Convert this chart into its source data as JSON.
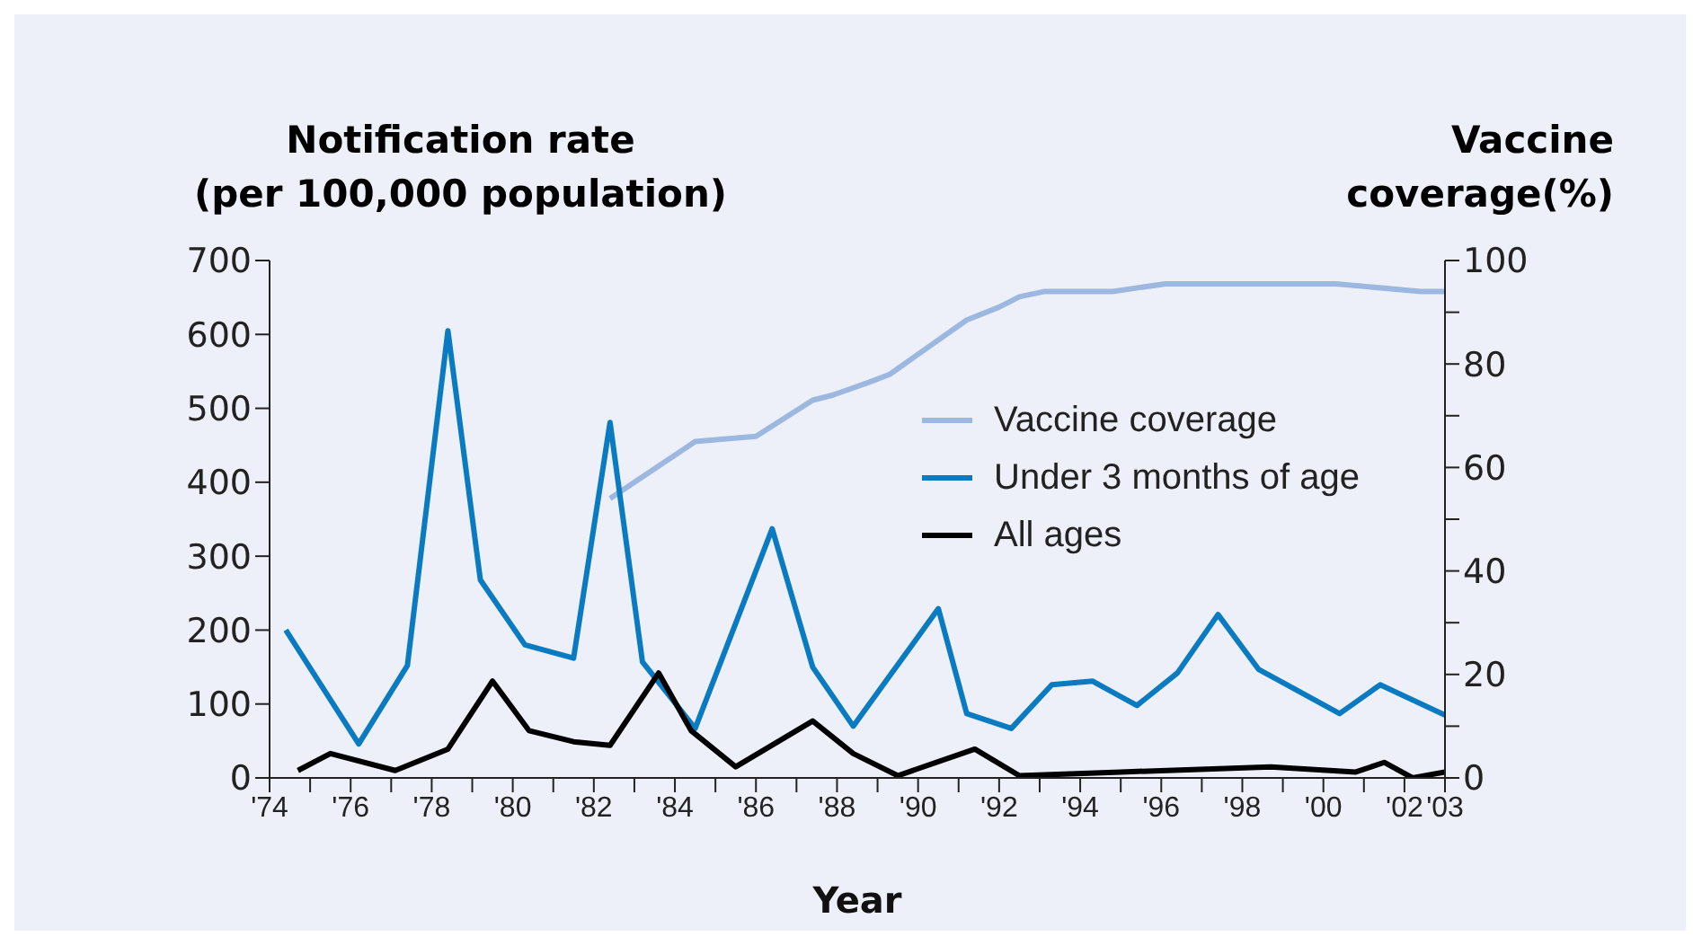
{
  "chart_data": {
    "type": "line",
    "xlabel": "Year",
    "ylabel": "Notification rate\n(per 100,000 population)",
    "y2label": "Vaccine\ncoverage(%)",
    "xlim": [
      1974,
      2003
    ],
    "xticks": [
      {
        "value": 1974,
        "label": "'74"
      },
      {
        "value": 1975,
        "label": null
      },
      {
        "value": 1976,
        "label": "'76"
      },
      {
        "value": 1977,
        "label": null
      },
      {
        "value": 1978,
        "label": "'78"
      },
      {
        "value": 1979,
        "label": null
      },
      {
        "value": 1980,
        "label": "'80"
      },
      {
        "value": 1981,
        "label": null
      },
      {
        "value": 1982,
        "label": "'82"
      },
      {
        "value": 1983,
        "label": null
      },
      {
        "value": 1984,
        "label": "'84"
      },
      {
        "value": 1985,
        "label": null
      },
      {
        "value": 1986,
        "label": "'86"
      },
      {
        "value": 1987,
        "label": null
      },
      {
        "value": 1988,
        "label": "'88"
      },
      {
        "value": 1989,
        "label": null
      },
      {
        "value": 1990,
        "label": "'90"
      },
      {
        "value": 1991,
        "label": null
      },
      {
        "value": 1992,
        "label": "'92"
      },
      {
        "value": 1993,
        "label": null
      },
      {
        "value": 1994,
        "label": "'94"
      },
      {
        "value": 1995,
        "label": null
      },
      {
        "value": 1996,
        "label": "'96"
      },
      {
        "value": 1997,
        "label": null
      },
      {
        "value": 1998,
        "label": "'98"
      },
      {
        "value": 1999,
        "label": null
      },
      {
        "value": 2000,
        "label": "'00"
      },
      {
        "value": 2001,
        "label": null
      },
      {
        "value": 2002,
        "label": "'02"
      },
      {
        "value": 2003,
        "label": "'03"
      }
    ],
    "ylim": [
      0,
      700
    ],
    "yticks": [
      0,
      100,
      200,
      300,
      400,
      500,
      600,
      700
    ],
    "y2lim": [
      0,
      100
    ],
    "y2ticks": [
      0,
      {
        "value": 10,
        "label": null
      },
      20,
      {
        "value": 30,
        "label": null
      },
      40,
      {
        "value": 50,
        "label": null
      },
      60,
      {
        "value": 70,
        "label": null
      },
      80,
      {
        "value": 90,
        "label": null
      },
      100
    ],
    "legend": "right",
    "marker": "none",
    "series": [
      {
        "name": "Vaccine coverage",
        "color": "#9cb8e0",
        "axis": "y2",
        "x": [
          1982.4,
          1984.5,
          1986.0,
          1987.4,
          1987.9,
          1988.8,
          1989.3,
          1991.2,
          1992.0,
          1992.5,
          1993.1,
          1994.8,
          1996.1,
          2000.3,
          2002.4,
          2003
        ],
        "values": [
          54,
          65,
          66,
          73,
          74,
          76.5,
          78,
          88.5,
          91,
          93,
          94,
          94,
          95.5,
          95.5,
          94,
          94
        ]
      },
      {
        "name": "Under 3 months of age",
        "color": "#0a7bc1",
        "x": [
          1974.4,
          1976.2,
          1977.4,
          1978.4,
          1979.2,
          1980.3,
          1981.5,
          1982.4,
          1983.2,
          1984.5,
          1986.4,
          1987.4,
          1988.4,
          1990.5,
          1991.2,
          1992.3,
          1993.3,
          1994.3,
          1995.4,
          1996.4,
          1997.4,
          1998.4,
          2000.4,
          2001.4,
          2003
        ],
        "values": [
          200,
          46,
          152,
          605,
          268,
          180,
          162,
          481,
          157,
          67,
          337,
          150,
          70,
          229,
          87,
          67,
          126,
          131,
          98,
          142,
          221,
          147,
          87,
          126,
          85
        ]
      },
      {
        "name": "All ages",
        "color": "#000000",
        "x": [
          1974.7,
          1975.5,
          1977.1,
          1978.4,
          1979.5,
          1980.4,
          1981.5,
          1982.4,
          1983.6,
          1984.4,
          1985.5,
          1987.4,
          1988.4,
          1989.5,
          1991.4,
          1992.5,
          1995.0,
          1998.7,
          2000.8,
          2001.5,
          2002.2,
          2003
        ],
        "values": [
          10,
          33,
          10,
          39,
          131,
          64,
          49,
          44,
          142,
          64,
          15,
          77,
          33,
          3,
          39,
          3,
          8,
          15,
          8,
          21,
          0,
          8
        ]
      }
    ]
  }
}
